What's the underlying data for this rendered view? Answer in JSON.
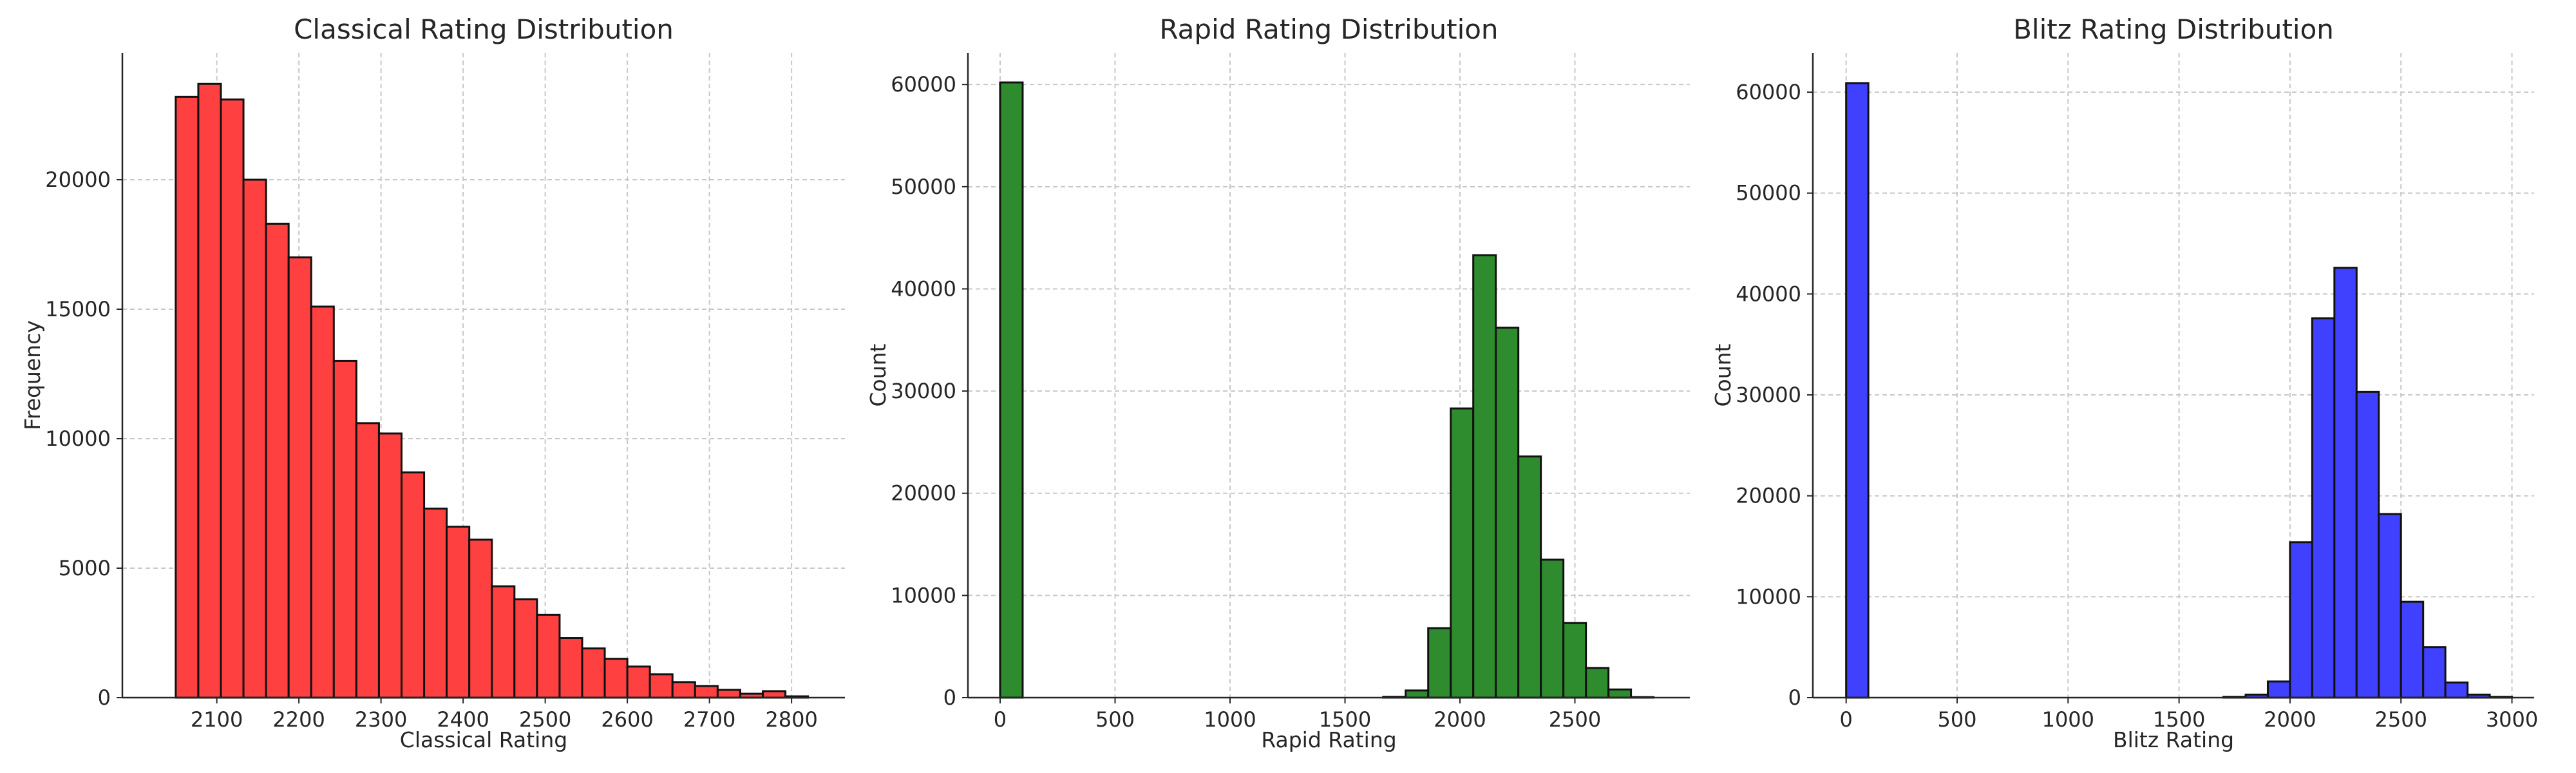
{
  "chart_data": [
    {
      "type": "bar",
      "title": "Classical Rating Distribution",
      "xlabel": "Classical Rating",
      "ylabel": "Frequency",
      "color": "#ff4040",
      "xlim": [
        1985,
        2865
      ],
      "ylim": [
        0,
        24900
      ],
      "xticks": [
        2100,
        2200,
        2300,
        2400,
        2500,
        2600,
        2700,
        2800
      ],
      "yticks": [
        0,
        5000,
        10000,
        15000,
        20000
      ],
      "grid": true,
      "bin_width": 27.5,
      "bins_start": [
        2050,
        2077.5,
        2105,
        2132.5,
        2160,
        2187.5,
        2215,
        2242.5,
        2270,
        2297.5,
        2325,
        2352.5,
        2380,
        2407.5,
        2435,
        2462.5,
        2490,
        2517.5,
        2545,
        2572.5,
        2600,
        2627.5,
        2655,
        2682.5,
        2710,
        2737.5,
        2765,
        2792.5
      ],
      "values": [
        23200,
        23700,
        23100,
        20000,
        18300,
        17000,
        15100,
        13000,
        10600,
        10200,
        8700,
        7300,
        6600,
        6100,
        4300,
        3800,
        3200,
        2300,
        1900,
        1500,
        1200,
        900,
        600,
        450,
        300,
        150,
        250,
        50
      ]
    },
    {
      "type": "bar",
      "title": "Rapid Rating Distribution",
      "xlabel": "Rapid Rating",
      "ylabel": "Count",
      "color": "#2e8b2e",
      "xlim": [
        -140,
        3000
      ],
      "ylim": [
        0,
        63100
      ],
      "xticks": [
        0,
        500,
        1000,
        1500,
        2000,
        2500
      ],
      "yticks": [
        0,
        10000,
        20000,
        30000,
        40000,
        50000,
        60000
      ],
      "grid": true,
      "bin_width": 98,
      "bins_start": [
        0,
        98,
        196,
        294,
        392,
        490,
        588,
        686,
        784,
        882,
        980,
        1078,
        1176,
        1274,
        1372,
        1470,
        1568,
        1666,
        1764,
        1862,
        1960,
        2058,
        2156,
        2254,
        2352,
        2450,
        2548,
        2646,
        2744
      ],
      "values": [
        60200,
        0,
        0,
        0,
        0,
        0,
        0,
        0,
        0,
        0,
        0,
        0,
        0,
        0,
        0,
        0,
        0,
        80,
        700,
        6800,
        28300,
        43300,
        36200,
        23600,
        13500,
        7300,
        2900,
        800,
        50
      ]
    },
    {
      "type": "bar",
      "title": "Blitz Rating Distribution",
      "xlabel": "Blitz Rating",
      "ylabel": "Count",
      "color": "#4040ff",
      "xlim": [
        -150,
        3100
      ],
      "ylim": [
        0,
        63900
      ],
      "xticks": [
        0,
        500,
        1000,
        1500,
        2000,
        2500,
        3000
      ],
      "yticks": [
        0,
        10000,
        20000,
        30000,
        40000,
        50000,
        60000
      ],
      "grid": true,
      "bin_width": 100,
      "bins_start": [
        0,
        100,
        200,
        300,
        400,
        500,
        600,
        700,
        800,
        900,
        1000,
        1100,
        1200,
        1300,
        1400,
        1500,
        1600,
        1700,
        1800,
        1900,
        2000,
        2100,
        2200,
        2300,
        2400,
        2500,
        2600,
        2700,
        2800,
        2900
      ],
      "values": [
        60900,
        0,
        0,
        0,
        0,
        0,
        0,
        0,
        0,
        0,
        0,
        0,
        0,
        0,
        0,
        0,
        0,
        80,
        300,
        1600,
        15400,
        37600,
        42600,
        30300,
        18200,
        9500,
        5000,
        1500,
        300,
        80
      ]
    }
  ]
}
